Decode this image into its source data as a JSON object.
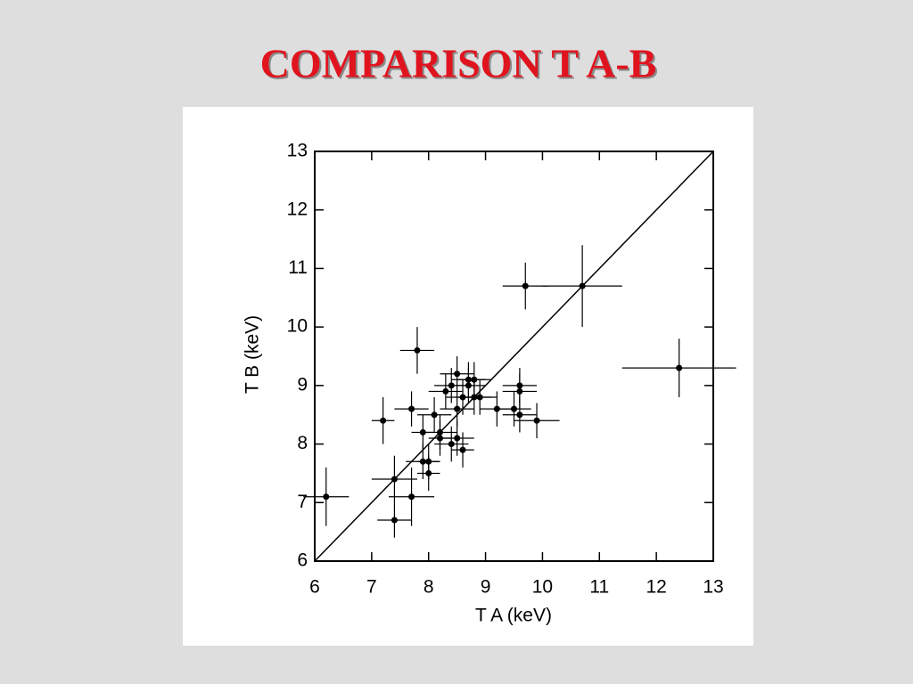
{
  "chart_data": {
    "type": "scatter",
    "title": "COMPARISON T A-B",
    "x_label": "T A (keV)",
    "y_label": "T B (keV)",
    "x": [
      6.2,
      7.2,
      7.4,
      7.4,
      7.7,
      7.7,
      7.8,
      7.9,
      7.9,
      8.0,
      8.0,
      8.1,
      8.2,
      8.2,
      8.3,
      8.4,
      8.4,
      8.5,
      8.5,
      8.5,
      8.6,
      8.6,
      8.7,
      8.7,
      8.8,
      8.8,
      8.9,
      9.2,
      9.5,
      9.6,
      9.6,
      9.6,
      9.9,
      9.7,
      10.7,
      12.4
    ],
    "y": [
      7.1,
      8.4,
      7.4,
      6.7,
      7.1,
      8.6,
      9.6,
      8.2,
      7.7,
      7.7,
      7.5,
      8.5,
      8.2,
      8.1,
      8.9,
      9.0,
      8.0,
      9.2,
      8.6,
      8.1,
      8.8,
      7.9,
      9.0,
      9.1,
      9.1,
      8.8,
      8.8,
      8.6,
      8.6,
      9.0,
      8.9,
      8.5,
      8.4,
      10.7,
      10.7,
      9.3
    ],
    "xerr": [
      0.4,
      0.2,
      0.4,
      0.3,
      0.4,
      0.3,
      0.3,
      0.2,
      0.3,
      0.2,
      0.2,
      0.3,
      0.3,
      0.2,
      0.3,
      0.3,
      0.3,
      0.3,
      0.3,
      0.3,
      0.3,
      0.2,
      0.3,
      0.3,
      0.3,
      0.3,
      0.3,
      0.3,
      0.3,
      0.3,
      0.3,
      0.3,
      0.4,
      0.4,
      0.7,
      1.0
    ],
    "yerr": [
      0.5,
      0.4,
      0.4,
      0.3,
      0.5,
      0.3,
      0.4,
      0.3,
      0.3,
      0.3,
      0.3,
      0.3,
      0.3,
      0.3,
      0.3,
      0.3,
      0.3,
      0.3,
      0.3,
      0.3,
      0.3,
      0.3,
      0.3,
      0.3,
      0.3,
      0.3,
      0.3,
      0.3,
      0.3,
      0.3,
      0.3,
      0.3,
      0.3,
      0.4,
      0.7,
      0.5
    ],
    "color": "#000000",
    "xlim": [
      6,
      13
    ],
    "ylim": [
      6,
      13
    ],
    "xticks": [
      6,
      7,
      8,
      9,
      10,
      11,
      12,
      13
    ],
    "yticks": [
      6,
      7,
      8,
      9,
      10,
      11,
      12,
      13
    ]
  }
}
